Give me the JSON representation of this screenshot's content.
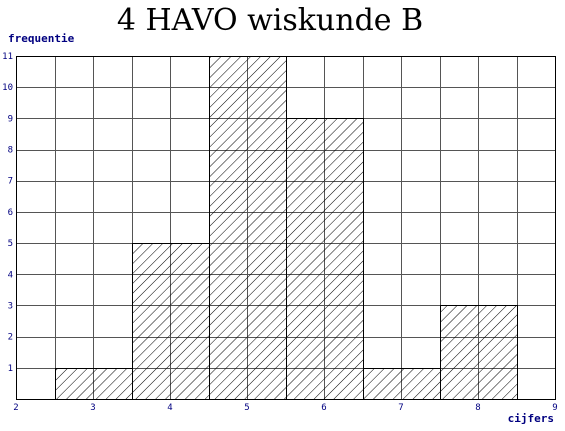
{
  "chart_data": {
    "type": "bar",
    "title": "4 HAVO wiskunde B",
    "xlabel": "cijfers",
    "ylabel": "frequentie",
    "x_ticks": [
      2,
      3,
      4,
      5,
      6,
      7,
      8,
      9
    ],
    "y_ticks": [
      1,
      2,
      3,
      4,
      5,
      6,
      7,
      8,
      9,
      10,
      11
    ],
    "xlim": [
      2,
      9
    ],
    "ylim": [
      0,
      11
    ],
    "bin_edges": [
      2.5,
      3.5,
      4.5,
      5.5,
      6.5,
      7.5,
      8.5
    ],
    "values": [
      1,
      5,
      11,
      9,
      1,
      3
    ],
    "grid": true,
    "bar_fill": "diagonal-hatch",
    "colors": {
      "label": "#000080",
      "grid": "#555555",
      "bar": "#000000",
      "background": "#ffffff"
    }
  }
}
